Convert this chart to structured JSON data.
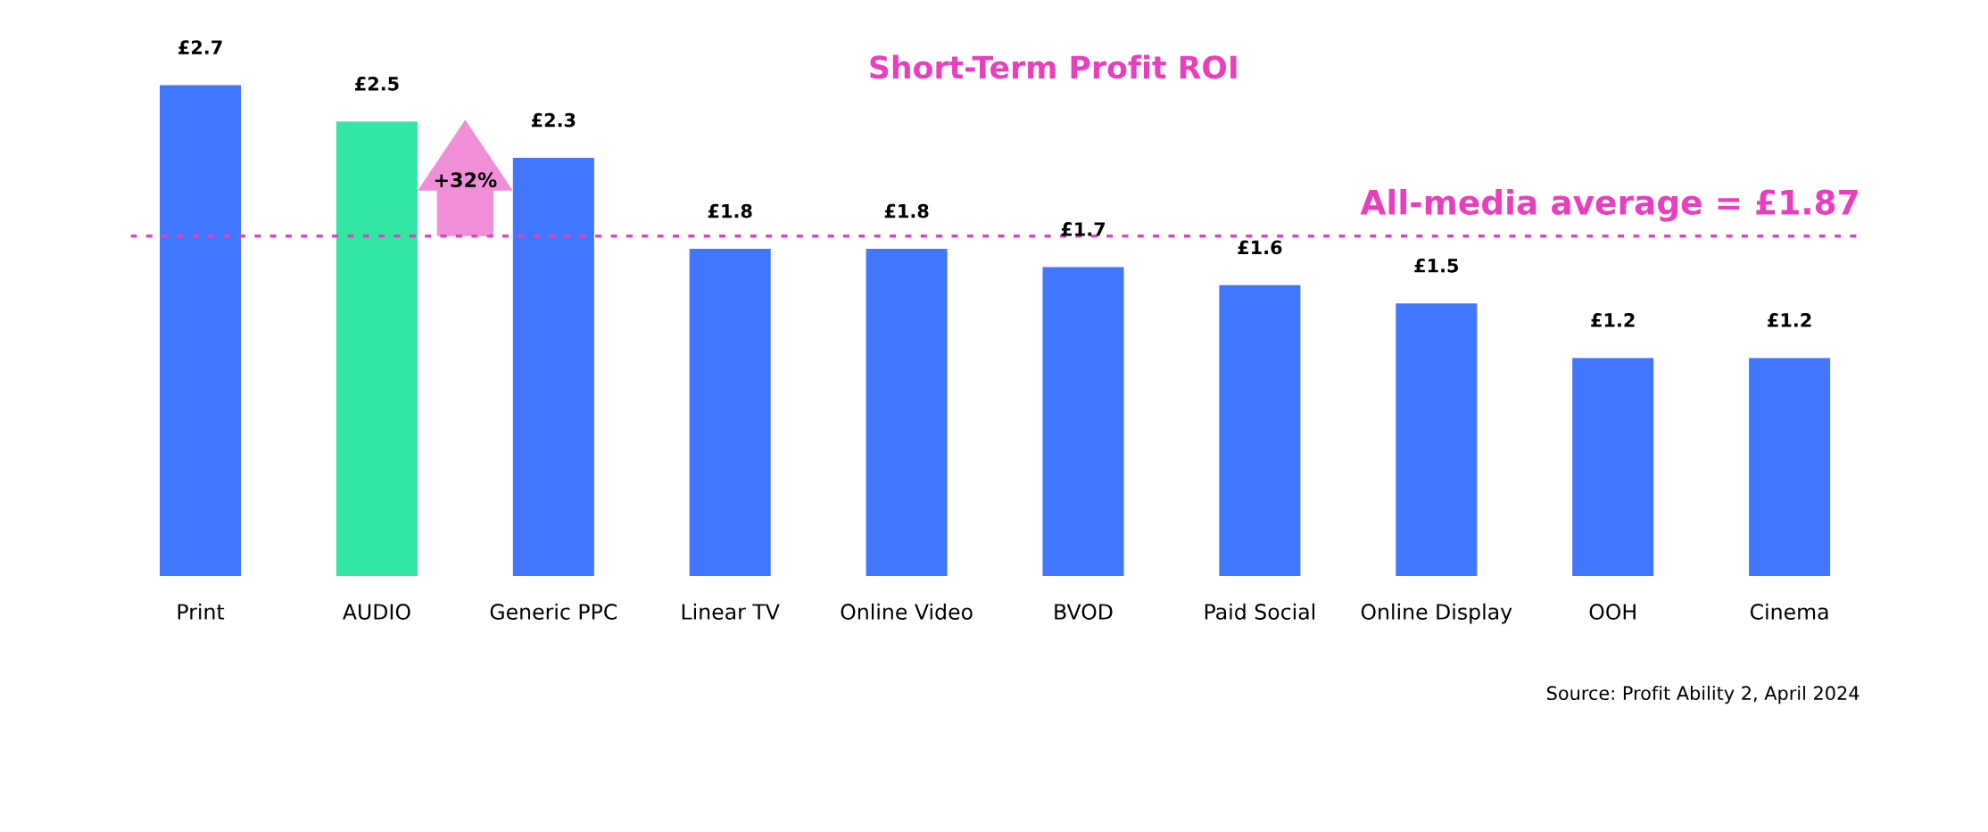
{
  "chart_data": {
    "type": "bar",
    "title": "Short-Term Profit ROI",
    "categories": [
      "Print",
      "AUDIO",
      "Generic PPC",
      "Linear TV",
      "Online Video",
      "BVOD",
      "Paid Social",
      "Online Display",
      "OOH",
      "Cinema"
    ],
    "values": [
      2.7,
      2.5,
      2.3,
      1.8,
      1.8,
      1.7,
      1.6,
      1.5,
      1.2,
      1.2
    ],
    "colors": [
      "#4176ff",
      "#33e6a4",
      "#4176ff",
      "#4176ff",
      "#4176ff",
      "#4176ff",
      "#4176ff",
      "#4176ff",
      "#4176ff",
      "#4176ff"
    ],
    "value_labels": [
      "£2.7",
      "£2.5",
      "£2.3",
      "£1.8",
      "£1.8",
      "£1.7",
      "£1.6",
      "£1.5",
      "£1.2",
      "£1.2"
    ],
    "tick_labels": "x",
    "grid": false,
    "ref_lines": [
      {
        "axis": "y",
        "value": 1.87,
        "label": "All-media average = £1.87",
        "color": "#e83fbf",
        "line_style": "dotted"
      }
    ],
    "annotations": [
      "+32%",
      "Source: Profit Ability 2, April 2024"
    ]
  }
}
